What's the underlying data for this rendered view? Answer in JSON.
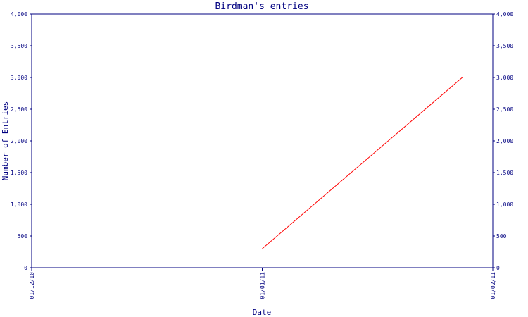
{
  "chart_data": {
    "type": "line",
    "title": "Birdman's entries",
    "xlabel": "Date",
    "ylabel": "Number of Entries",
    "x_ticks": [
      "01/12/10",
      "01/01/11",
      "01/02/11"
    ],
    "y_ticks": [
      "0",
      "500",
      "1,000",
      "1,500",
      "2,000",
      "2,500",
      "3,000",
      "3,500",
      "4,000"
    ],
    "ylim": [
      0,
      4000
    ],
    "xlim": [
      "2010-12-01",
      "2011-02-01"
    ],
    "grid": false,
    "series": [
      {
        "color": "#ff0000",
        "points": [
          {
            "x": "2011-01-01",
            "y": 300
          },
          {
            "x": "2011-01-28",
            "y": 3010
          }
        ]
      }
    ]
  },
  "colors": {
    "axis": "#000080",
    "line": "#ff0000",
    "background": "#ffffff"
  }
}
